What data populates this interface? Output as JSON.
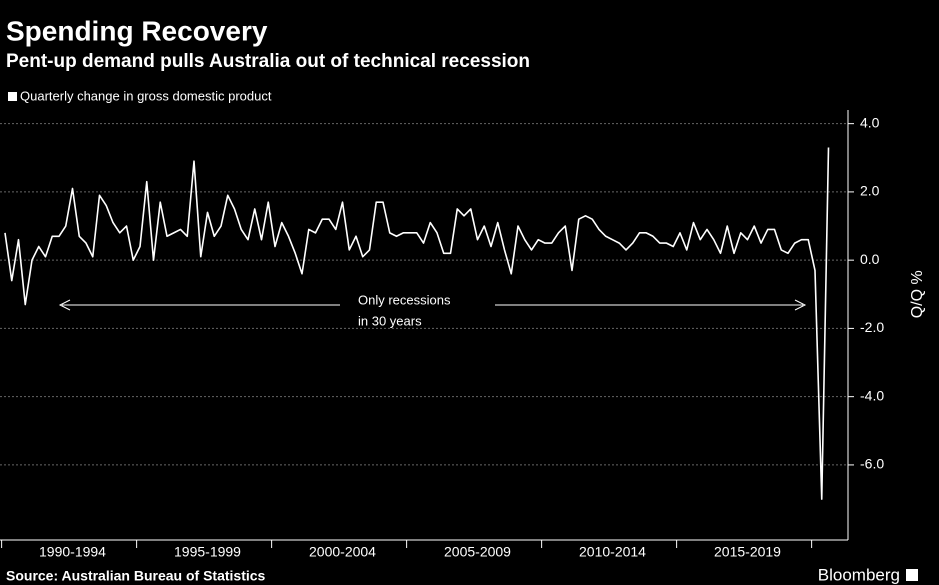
{
  "chart_data": {
    "type": "line",
    "title": "Spending Recovery",
    "subtitle": "Pent-up demand pulls Australia out of technical recession",
    "y_label": "Q/Q %",
    "annotation": [
      "Only recessions",
      "in 30 years"
    ],
    "source": "Source: Australian Bureau of Statistics",
    "brand": "Bloomberg",
    "categories": [
      null,
      null,
      null,
      null,
      null,
      null,
      null,
      null,
      null,
      null,
      "1990-1994",
      null,
      null,
      null,
      null,
      null,
      null,
      null,
      null,
      null,
      null,
      null,
      null,
      null,
      null,
      null,
      null,
      null,
      null,
      null,
      "1995-1999",
      null,
      null,
      null,
      null,
      null,
      null,
      null,
      null,
      null,
      null,
      null,
      null,
      null,
      null,
      null,
      null,
      null,
      null,
      null,
      "2000-2004",
      null,
      null,
      null,
      null,
      null,
      null,
      null,
      null,
      null,
      null,
      null,
      null,
      null,
      null,
      null,
      null,
      null,
      null,
      null,
      "2005-2009",
      null,
      null,
      null,
      null,
      null,
      null,
      null,
      null,
      null,
      null,
      null,
      null,
      null,
      null,
      null,
      null,
      null,
      null,
      null,
      "2010-2014",
      null,
      null,
      null,
      null,
      null,
      null,
      null,
      null,
      null,
      null,
      null,
      null,
      null,
      null,
      null,
      null,
      null,
      null,
      null,
      "2015-2019",
      null,
      null,
      null,
      null,
      null,
      null,
      null,
      null,
      null,
      null,
      null,
      null
    ],
    "series": [
      {
        "name": "Quarterly change in gross domestic product",
        "color": "#ffffff",
        "values": [
          0.8,
          -0.6,
          0.6,
          -1.3,
          0.0,
          0.4,
          0.1,
          0.7,
          0.7,
          1.0,
          2.1,
          0.7,
          0.5,
          0.1,
          1.9,
          1.6,
          1.1,
          0.8,
          1.0,
          0.0,
          0.4,
          2.3,
          0.0,
          1.7,
          0.7,
          0.8,
          0.9,
          0.7,
          2.9,
          0.1,
          1.4,
          0.7,
          1.0,
          1.9,
          1.5,
          0.9,
          0.6,
          1.5,
          0.6,
          1.7,
          0.4,
          1.1,
          0.7,
          0.2,
          -0.4,
          0.9,
          0.8,
          1.2,
          1.2,
          0.9,
          1.7,
          0.3,
          0.7,
          0.1,
          0.3,
          1.7,
          1.7,
          0.8,
          0.7,
          0.8,
          0.8,
          0.8,
          0.5,
          1.1,
          0.8,
          0.2,
          0.2,
          1.5,
          1.3,
          1.5,
          0.6,
          1.0,
          0.4,
          1.1,
          0.3,
          -0.4,
          1.0,
          0.6,
          0.3,
          0.6,
          0.5,
          0.5,
          0.8,
          1.0,
          -0.3,
          1.2,
          1.3,
          1.2,
          0.9,
          0.7,
          0.6,
          0.5,
          0.3,
          0.5,
          0.8,
          0.8,
          0.7,
          0.5,
          0.5,
          0.4,
          0.8,
          0.3,
          1.1,
          0.6,
          0.9,
          0.6,
          0.2,
          1.0,
          0.2,
          0.8,
          0.6,
          1.0,
          0.5,
          0.9,
          0.9,
          0.3,
          0.2,
          0.5,
          0.6,
          0.6,
          -0.3,
          -7.0,
          3.3
        ]
      }
    ],
    "ylim": [
      -8.2,
      4.4
    ],
    "yticks": [
      {
        "value": 4,
        "label": "4.0"
      },
      {
        "value": 2,
        "label": "2.0"
      },
      {
        "value": 0,
        "label": "0.0"
      },
      {
        "value": -2,
        "label": "-2.0"
      },
      {
        "value": -4,
        "label": "-4.0"
      },
      {
        "value": -6,
        "label": "-6.0"
      }
    ],
    "grid": true
  }
}
